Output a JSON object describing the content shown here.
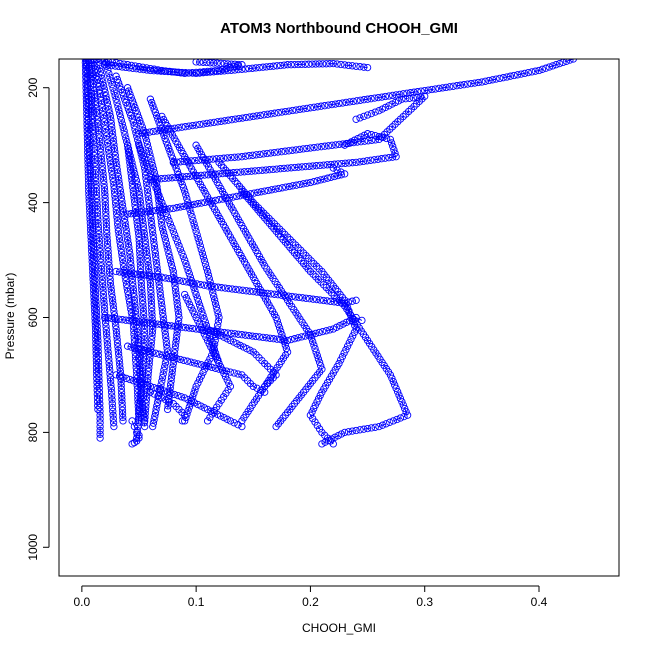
{
  "chart_data": {
    "type": "scatter",
    "title": "ATOM3 Northbound CHOOH_GMI",
    "xlabel": "CHOOH_GMI",
    "ylabel": "Pressure (mbar)",
    "xlim": [
      -0.02,
      0.47
    ],
    "ylim": [
      1050,
      150
    ],
    "y_reversed": true,
    "x_ticks": [
      "0.0",
      "0.1",
      "0.2",
      "0.3",
      "0.4"
    ],
    "x_tick_values": [
      0.0,
      0.1,
      0.2,
      0.3,
      0.4
    ],
    "y_ticks": [
      "200",
      "400",
      "600",
      "800",
      "1000"
    ],
    "y_tick_values": [
      200,
      400,
      600,
      800,
      1000
    ],
    "grid": false,
    "legend": "none",
    "marker": "open-circle",
    "color": "#0000ff",
    "series": [
      {
        "x": [
          0.004,
          0.005,
          0.006,
          0.007,
          0.009,
          0.01,
          0.012,
          0.014,
          0.015,
          0.016,
          0.016
        ],
        "y": [
          150,
          200,
          260,
          330,
          400,
          480,
          560,
          640,
          710,
          770,
          810
        ]
      },
      {
        "x": [
          0.003,
          0.004,
          0.005,
          0.006,
          0.008,
          0.01,
          0.012,
          0.013,
          0.014
        ],
        "y": [
          150,
          220,
          300,
          380,
          460,
          540,
          620,
          700,
          760
        ]
      },
      {
        "x": [
          0.006,
          0.008,
          0.01,
          0.012,
          0.014,
          0.017,
          0.02,
          0.023,
          0.026,
          0.028
        ],
        "y": [
          150,
          210,
          280,
          350,
          430,
          510,
          590,
          660,
          730,
          790
        ]
      },
      {
        "x": [
          0.008,
          0.012,
          0.016,
          0.02,
          0.022,
          0.025,
          0.03,
          0.034,
          0.036
        ],
        "y": [
          150,
          230,
          300,
          380,
          460,
          540,
          620,
          700,
          780
        ]
      },
      {
        "x": [
          0.01,
          0.016,
          0.022,
          0.028,
          0.032,
          0.038,
          0.045,
          0.048,
          0.05
        ],
        "y": [
          150,
          210,
          290,
          370,
          450,
          530,
          610,
          700,
          780
        ]
      },
      {
        "x": [
          0.015,
          0.025,
          0.03,
          0.036,
          0.042,
          0.046,
          0.05,
          0.052,
          0.055
        ],
        "y": [
          160,
          250,
          330,
          410,
          490,
          570,
          650,
          730,
          790
        ]
      },
      {
        "x": [
          0.02,
          0.03,
          0.04,
          0.05,
          0.055,
          0.06,
          0.062,
          0.058,
          0.055
        ],
        "y": [
          150,
          220,
          300,
          380,
          460,
          540,
          620,
          700,
          780
        ]
      },
      {
        "x": [
          0.03,
          0.045,
          0.055,
          0.06,
          0.065,
          0.07,
          0.075,
          0.068,
          0.062
        ],
        "y": [
          180,
          260,
          340,
          420,
          500,
          580,
          660,
          730,
          790
        ]
      },
      {
        "x": [
          0.04,
          0.055,
          0.065,
          0.07,
          0.08,
          0.085,
          0.08,
          0.075
        ],
        "y": [
          200,
          280,
          360,
          440,
          520,
          600,
          680,
          760
        ]
      },
      {
        "x": [
          0.06,
          0.075,
          0.09,
          0.1,
          0.11,
          0.12,
          0.115,
          0.1,
          0.09
        ],
        "y": [
          220,
          300,
          380,
          450,
          520,
          600,
          660,
          720,
          780
        ]
      },
      {
        "x": [
          0.05,
          0.06,
          0.07,
          0.08,
          0.09,
          0.1,
          0.11,
          0.12
        ],
        "y": [
          300,
          350,
          400,
          450,
          500,
          560,
          620,
          680
        ]
      },
      {
        "x": [
          0.07,
          0.09,
          0.11,
          0.13,
          0.15,
          0.17,
          0.18,
          0.16,
          0.14
        ],
        "y": [
          250,
          320,
          390,
          460,
          530,
          600,
          660,
          720,
          780
        ]
      },
      {
        "x": [
          0.1,
          0.12,
          0.14,
          0.16,
          0.18,
          0.2,
          0.21,
          0.19,
          0.17
        ],
        "y": [
          300,
          370,
          440,
          510,
          570,
          630,
          690,
          740,
          790
        ]
      },
      {
        "x": [
          0.12,
          0.15,
          0.18,
          0.21,
          0.23,
          0.24,
          0.225,
          0.21,
          0.2,
          0.21,
          0.22
        ],
        "y": [
          330,
          400,
          460,
          520,
          570,
          620,
          680,
          730,
          770,
          800,
          820
        ]
      },
      {
        "x": [
          0.14,
          0.17,
          0.2,
          0.23,
          0.25,
          0.27,
          0.285,
          0.26,
          0.23,
          0.21
        ],
        "y": [
          380,
          450,
          520,
          580,
          640,
          700,
          770,
          790,
          800,
          820
        ]
      },
      {
        "x": [
          0.05,
          0.1,
          0.15,
          0.2,
          0.25,
          0.3,
          0.35,
          0.4,
          0.43
        ],
        "y": [
          280,
          265,
          250,
          235,
          220,
          205,
          190,
          170,
          150
        ]
      },
      {
        "x": [
          0.08,
          0.14,
          0.2,
          0.26,
          0.3,
          0.28,
          0.26,
          0.24
        ],
        "y": [
          330,
          320,
          305,
          290,
          215,
          220,
          240,
          255
        ]
      },
      {
        "x": [
          0.06,
          0.12,
          0.18,
          0.24,
          0.275,
          0.27,
          0.25,
          0.23
        ],
        "y": [
          360,
          350,
          340,
          330,
          320,
          290,
          280,
          300
        ]
      },
      {
        "x": [
          0.04,
          0.08,
          0.12,
          0.16,
          0.2,
          0.23,
          0.22
        ],
        "y": [
          420,
          410,
          395,
          380,
          365,
          350,
          340
        ]
      },
      {
        "x": [
          0.03,
          0.07,
          0.11,
          0.15,
          0.19,
          0.23,
          0.24
        ],
        "y": [
          520,
          530,
          545,
          555,
          565,
          575,
          570
        ]
      },
      {
        "x": [
          0.02,
          0.06,
          0.1,
          0.14,
          0.18,
          0.22,
          0.24,
          0.245
        ],
        "y": [
          600,
          610,
          620,
          630,
          640,
          620,
          600,
          605
        ]
      },
      {
        "x": [
          0.04,
          0.08,
          0.12,
          0.14,
          0.15,
          0.16
        ],
        "y": [
          650,
          670,
          690,
          700,
          720,
          730
        ]
      },
      {
        "x": [
          0.03,
          0.06,
          0.09,
          0.11,
          0.13,
          0.14
        ],
        "y": [
          700,
          720,
          740,
          760,
          780,
          790
        ]
      },
      {
        "x": [
          0.01,
          0.04,
          0.07,
          0.09,
          0.12,
          0.14,
          0.1
        ],
        "y": [
          150,
          160,
          170,
          175,
          170,
          160,
          155
        ]
      },
      {
        "x": [
          0.02,
          0.06,
          0.1,
          0.14,
          0.18,
          0.22,
          0.25
        ],
        "y": [
          160,
          170,
          175,
          168,
          160,
          158,
          165
        ]
      },
      {
        "x": [
          0.09,
          0.1,
          0.11,
          0.12,
          0.13,
          0.12,
          0.11
        ],
        "y": [
          560,
          600,
          640,
          680,
          720,
          750,
          780
        ]
      },
      {
        "x": [
          0.04,
          0.045,
          0.05,
          0.052,
          0.055,
          0.053,
          0.05,
          0.048
        ],
        "y": [
          300,
          380,
          460,
          540,
          620,
          700,
          770,
          810
        ]
      },
      {
        "x": [
          0.044,
          0.046,
          0.048,
          0.05,
          0.05,
          0.048,
          0.046,
          0.044
        ],
        "y": [
          780,
          790,
          800,
          805,
          810,
          815,
          818,
          820
        ]
      },
      {
        "x": [
          0.06,
          0.07,
          0.08,
          0.085,
          0.09,
          0.088
        ],
        "y": [
          730,
          740,
          750,
          760,
          770,
          780
        ]
      },
      {
        "x": [
          0.11,
          0.13,
          0.15,
          0.16,
          0.17,
          0.16
        ],
        "y": [
          620,
          640,
          660,
          680,
          700,
          720
        ]
      }
    ]
  }
}
